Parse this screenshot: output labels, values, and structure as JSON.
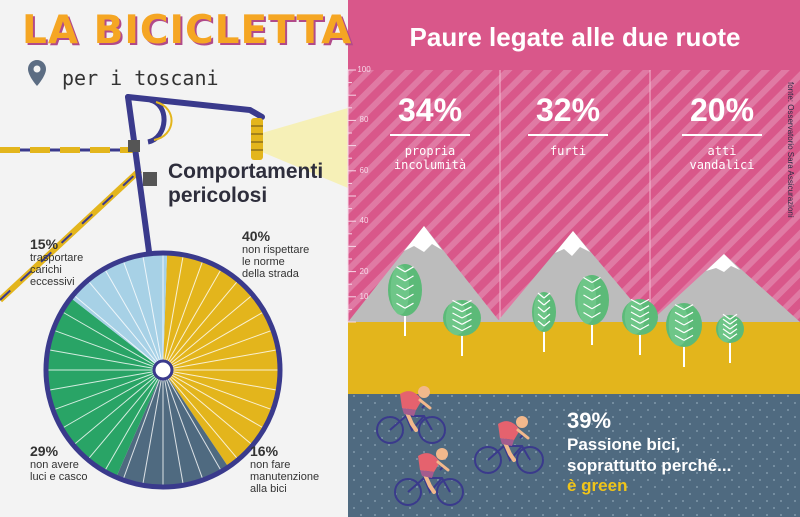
{
  "header": {
    "title": "LA BICICLETTA",
    "subtitle": "per i toscani"
  },
  "danger": {
    "title_line1": "Comportamenti",
    "title_line2": "pericolosi"
  },
  "right": {
    "title": "Paure legate alle due ruote",
    "source": "fonte: Osservatorio Sara Assicurazioni"
  },
  "green_note": {
    "pct": "39%",
    "line1": "Passione bici,",
    "line2": "soprattutto perché...",
    "highlight": "è green"
  },
  "colors": {
    "orange_title": "#f5a623",
    "pink": "#d9578a",
    "yellow": "#e3b51c",
    "light_blue": "#a7d1e6",
    "green": "#29a466",
    "slate": "#4f6a80",
    "navy": "#3a3a8c",
    "ground_blue": "#4f6a80"
  },
  "icons": [
    "location-pin-icon",
    "bicycle-handlebar-icon",
    "bicycle-wheel-icon",
    "mountain-icon",
    "tree-icon",
    "cyclist-icon"
  ],
  "chart_data": [
    {
      "type": "pie",
      "title": "Comportamenti pericolosi",
      "slices": [
        {
          "label": "non rispettare le norme della strada",
          "value": 40,
          "pct_text": "40%",
          "line1": "non rispettare",
          "line2": "le norme",
          "line3": "della strada",
          "color": "#e3b51c"
        },
        {
          "label": "non fare manutenzione alla bici",
          "value": 16,
          "pct_text": "16%",
          "line1": "non fare",
          "line2": "manutenzione",
          "line3": "alla bici",
          "color": "#4f6a80"
        },
        {
          "label": "non avere luci e casco",
          "value": 29,
          "pct_text": "29%",
          "line1": "non avere",
          "line2": "luci e casco",
          "line3": "",
          "color": "#29a466"
        },
        {
          "label": "trasportare carichi eccessivi",
          "value": 15,
          "pct_text": "15%",
          "line1": "trasportare",
          "line2": "carichi",
          "line3": "eccessivi",
          "color": "#a7d1e6"
        }
      ]
    },
    {
      "type": "bar",
      "title": "Paure legate alle due ruote",
      "categories": [
        "propria incolumità",
        "furti",
        "atti vandalici"
      ],
      "values": [
        34,
        32,
        20
      ],
      "value_labels": [
        "34%",
        "32%",
        "20%"
      ],
      "label_lines": [
        [
          "propria",
          "incolumità"
        ],
        [
          "furti"
        ],
        [
          "atti",
          "vandalici"
        ]
      ],
      "yticks": [
        10,
        20,
        40,
        60,
        80,
        100
      ],
      "ylim": [
        0,
        100
      ]
    },
    {
      "type": "bar",
      "title": "Passione bici",
      "values": [
        39
      ],
      "value_labels": [
        "39%"
      ]
    }
  ]
}
